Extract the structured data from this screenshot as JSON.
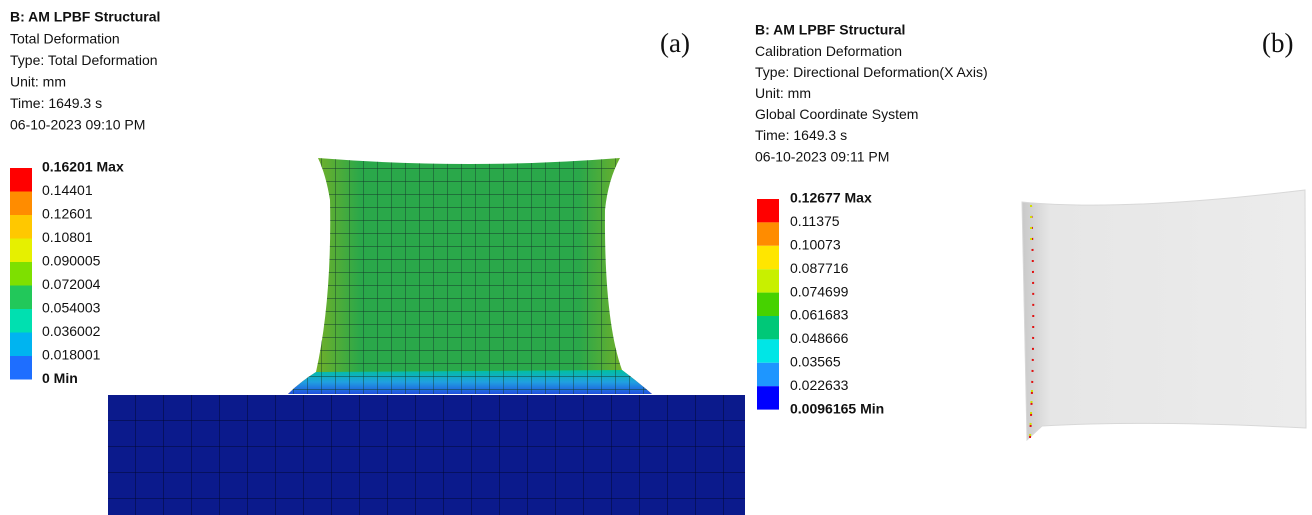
{
  "panels": [
    {
      "panel_label": "(a)",
      "header": [
        "B: AM LPBF Structural",
        "Total Deformation",
        "Type: Total Deformation",
        "Unit: mm",
        "Time: 1649.3 s",
        "06-10-2023 09:10 PM"
      ],
      "legend": {
        "labels": [
          "0.16201 Max",
          "0.14401",
          "0.12601",
          "0.10801",
          "0.090005",
          "0.072004",
          "0.054003",
          "0.036002",
          "0.018001",
          "0 Min"
        ],
        "colors": [
          "#ff0000",
          "#ff8c00",
          "#ffc800",
          "#e6f000",
          "#7ee000",
          "#22c85a",
          "#00e0b0",
          "#00b4f0",
          "#1e6eff"
        ]
      }
    },
    {
      "panel_label": "(b)",
      "header": [
        "B: AM LPBF Structural",
        "Calibration Deformation",
        "Type: Directional Deformation(X Axis)",
        "Unit: mm",
        "Global Coordinate System",
        "Time: 1649.3 s",
        "06-10-2023 09:11 PM"
      ],
      "legend": {
        "labels": [
          "0.12677 Max",
          "0.11375",
          "0.10073",
          "0.087716",
          "0.074699",
          "0.061683",
          "0.048666",
          "0.03565",
          "0.022633",
          "0.0096165 Min"
        ],
        "colors": [
          "#ff0000",
          "#ff8c00",
          "#ffe600",
          "#c8f000",
          "#46d200",
          "#00c878",
          "#00e6e6",
          "#1e96ff",
          "#0000ff"
        ]
      }
    }
  ]
}
